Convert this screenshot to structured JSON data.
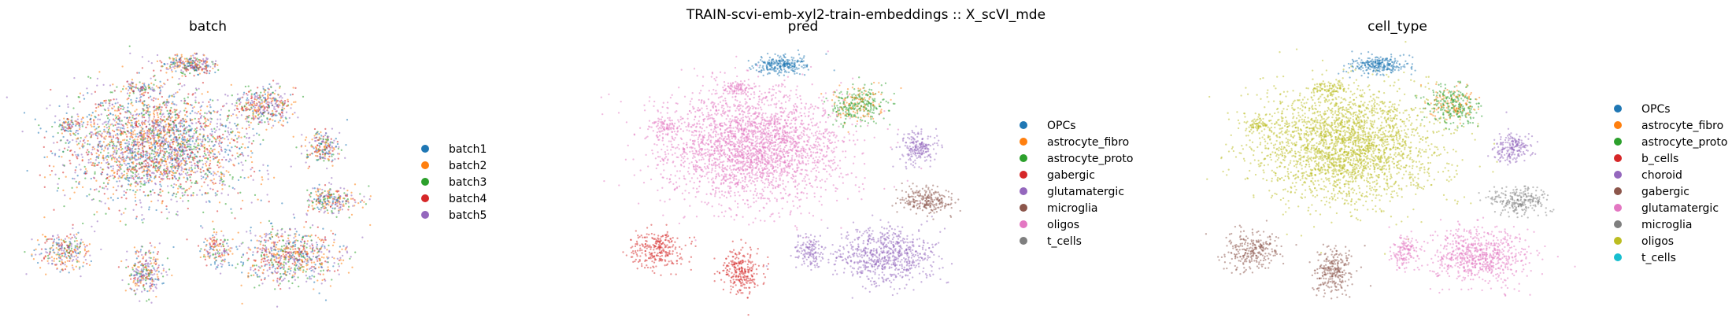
{
  "figure": {
    "suptitle": "TRAIN-scvi-emb-xyl2-train-embeddings :: X_scVI_mde"
  },
  "chart_data": [
    {
      "type": "scatter",
      "title": "batch",
      "xlabel": "",
      "ylabel": "",
      "grid": false,
      "legend_position": "right",
      "series": [
        {
          "name": "batch1",
          "color": "#1f77b4"
        },
        {
          "name": "batch2",
          "color": "#ff7f0e"
        },
        {
          "name": "batch3",
          "color": "#2ca02c"
        },
        {
          "name": "batch4",
          "color": "#d62728"
        },
        {
          "name": "batch5",
          "color": "#9467bd"
        }
      ]
    },
    {
      "type": "scatter",
      "title": "pred",
      "xlabel": "",
      "ylabel": "",
      "grid": false,
      "legend_position": "right",
      "series": [
        {
          "name": "OPCs",
          "color": "#1f77b4"
        },
        {
          "name": "astrocyte_fibro",
          "color": "#ff7f0e"
        },
        {
          "name": "astrocyte_proto",
          "color": "#2ca02c"
        },
        {
          "name": "gabergic",
          "color": "#d62728"
        },
        {
          "name": "glutamatergic",
          "color": "#9467bd"
        },
        {
          "name": "microglia",
          "color": "#8c564b"
        },
        {
          "name": "oligos",
          "color": "#e377c2"
        },
        {
          "name": "t_cells",
          "color": "#7f7f7f"
        }
      ]
    },
    {
      "type": "scatter",
      "title": "cell_type",
      "xlabel": "",
      "ylabel": "",
      "grid": false,
      "legend_position": "right",
      "series": [
        {
          "name": "OPCs",
          "color": "#1f77b4"
        },
        {
          "name": "astrocyte_fibro",
          "color": "#ff7f0e"
        },
        {
          "name": "astrocyte_proto",
          "color": "#2ca02c"
        },
        {
          "name": "b_cells",
          "color": "#d62728"
        },
        {
          "name": "choroid",
          "color": "#9467bd"
        },
        {
          "name": "gabergic",
          "color": "#8c564b"
        },
        {
          "name": "glutamatergic",
          "color": "#e377c2"
        },
        {
          "name": "microglia",
          "color": "#7f7f7f"
        },
        {
          "name": "oligos",
          "color": "#bcbd22"
        },
        {
          "name": "t_cells",
          "color": "#17becf"
        }
      ]
    }
  ]
}
